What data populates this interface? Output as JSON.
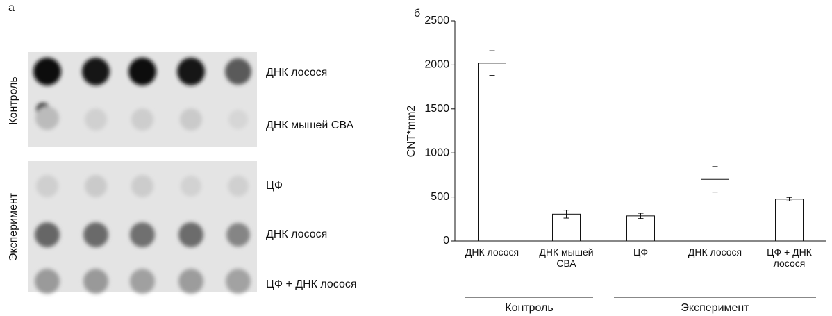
{
  "panel_a": {
    "label": "а",
    "groups": [
      {
        "label": "Контроль",
        "rows": [
          "ДНК лосося",
          "ДНК мышей СВА"
        ]
      },
      {
        "label": "Эксперимент",
        "rows": [
          "ЦФ",
          "ДНК лосося",
          "ЦФ + ДНК лосося"
        ]
      }
    ]
  },
  "chart_data": {
    "type": "bar",
    "panel_label": "б",
    "ylabel": "CNT*mm2",
    "categories": [
      "ДНК лосося",
      "ДНК мышей СВА",
      "ЦФ",
      "ДНК лосося",
      "ЦФ + ДНК лосося"
    ],
    "values": [
      2020,
      305,
      285,
      700,
      475
    ],
    "errors": [
      140,
      45,
      30,
      145,
      20
    ],
    "color": "#ffffff",
    "ylim": [
      0,
      2500
    ],
    "yticks": [
      0,
      500,
      1000,
      1500,
      2000,
      2500
    ],
    "groups": [
      {
        "label": "Контроль",
        "categories": [
          "ДНК лосося",
          "ДНК мышей СВА"
        ]
      },
      {
        "label": "Эксперимент",
        "categories": [
          "ЦФ",
          "ДНК лосося",
          "ЦФ + ДНК лосося"
        ]
      }
    ]
  }
}
